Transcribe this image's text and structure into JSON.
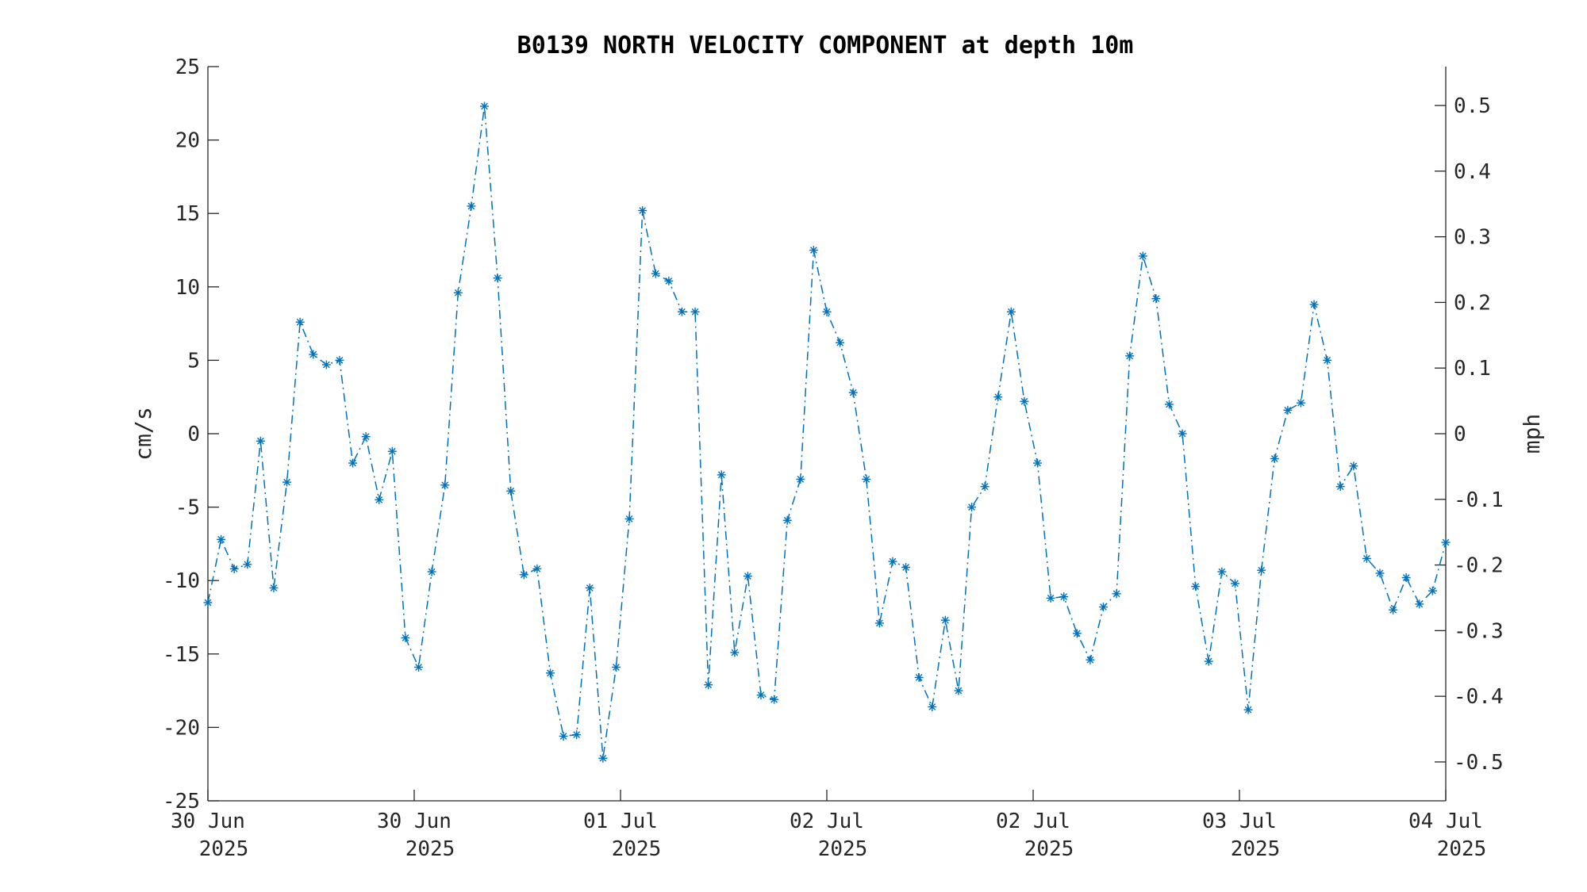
{
  "chart_data": {
    "type": "line",
    "title": "B0139 NORTH VELOCITY COMPONENT at depth 10m",
    "ylabel": "cm/s",
    "y2label": "mph",
    "ylim": [
      -25,
      25
    ],
    "yticks": [
      25,
      20,
      15,
      10,
      5,
      0,
      -5,
      -10,
      -15,
      -20,
      -25
    ],
    "y2ticks": [
      0.5,
      0.4,
      0.3,
      0.2,
      0.1,
      0,
      -0.1,
      -0.2,
      -0.3,
      -0.4,
      -0.5
    ],
    "y2_factor_mph_per_cms": 0.0223694,
    "xticks": [
      {
        "line1": "30 Jun",
        "line2": "2025"
      },
      {
        "line1": "30 Jun",
        "line2": "2025"
      },
      {
        "line1": "01 Jul",
        "line2": "2025"
      },
      {
        "line1": "02 Jul",
        "line2": "2025"
      },
      {
        "line1": "02 Jul",
        "line2": "2025"
      },
      {
        "line1": "03 Jul",
        "line2": "2025"
      },
      {
        "line1": "04 Jul",
        "line2": "2025"
      }
    ],
    "grid": false,
    "marker": "asterisk",
    "line_style": "dash-dot",
    "color": "#0072BD",
    "series": [
      {
        "values": [
          -11.5,
          -7.2,
          -9.2,
          -8.9,
          -0.5,
          -10.5,
          -3.3,
          7.6,
          5.4,
          4.7,
          5.0,
          -2.0,
          -0.2,
          -4.5,
          -1.2,
          -13.9,
          -15.9,
          -9.4,
          -3.5,
          9.6,
          15.5,
          22.3,
          10.6,
          -3.9,
          -9.6,
          -9.2,
          -16.3,
          -20.6,
          -20.5,
          -10.5,
          -22.1,
          -15.9,
          -5.8,
          15.2,
          10.9,
          10.4,
          8.3,
          8.3,
          -17.1,
          -2.8,
          -14.9,
          -9.7,
          -17.8,
          -18.1,
          -5.9,
          -3.1,
          12.5,
          8.3,
          6.2,
          2.8,
          -3.1,
          -12.9,
          -8.7,
          -9.1,
          -16.6,
          -18.6,
          -12.7,
          -17.5,
          -5.0,
          -3.6,
          2.5,
          8.3,
          2.2,
          -2.0,
          -11.2,
          -11.1,
          -13.6,
          -15.4,
          -11.8,
          -10.9,
          5.3,
          12.1,
          9.2,
          2.0,
          0.0,
          -10.4,
          -15.5,
          -9.4,
          -10.2,
          -18.8,
          -9.3,
          -1.7,
          1.6,
          2.1,
          8.8,
          5.0,
          -3.6,
          -2.2,
          -8.5,
          -9.5,
          -12.0,
          -9.8,
          -11.6,
          -10.7,
          -7.4
        ]
      }
    ]
  }
}
